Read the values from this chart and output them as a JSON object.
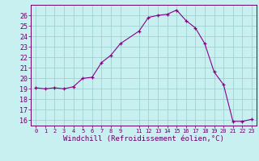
{
  "x": [
    0,
    1,
    2,
    3,
    4,
    5,
    6,
    7,
    8,
    9,
    11,
    12,
    13,
    14,
    15,
    16,
    17,
    18,
    19,
    20,
    21,
    22,
    23
  ],
  "y": [
    19.1,
    19.0,
    19.1,
    19.0,
    19.2,
    20.0,
    20.1,
    21.5,
    22.2,
    23.3,
    24.5,
    25.8,
    26.0,
    26.1,
    26.5,
    25.5,
    24.8,
    23.3,
    20.6,
    19.4,
    15.9,
    15.9,
    16.1
  ],
  "line_color": "#880088",
  "marker_color": "#880088",
  "bg_color": "#c8f0f0",
  "grid_color": "#99cccc",
  "xlabel": "Windchill (Refroidissement éolien,°C)",
  "xlim": [
    -0.5,
    23.5
  ],
  "ylim": [
    15.5,
    27.0
  ],
  "yticks": [
    16,
    17,
    18,
    19,
    20,
    21,
    22,
    23,
    24,
    25,
    26
  ],
  "xticks": [
    0,
    1,
    2,
    3,
    4,
    5,
    6,
    7,
    8,
    9,
    11,
    12,
    13,
    14,
    15,
    16,
    17,
    18,
    19,
    20,
    21,
    22,
    23
  ],
  "font_color": "#660066",
  "tick_fontsize": 6.0,
  "xlabel_fontsize": 6.5
}
